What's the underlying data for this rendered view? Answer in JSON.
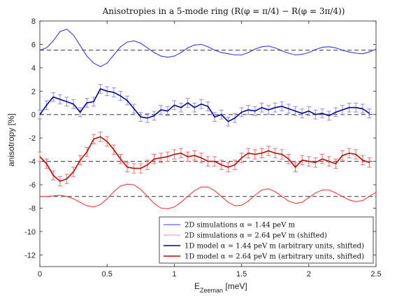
{
  "chart_data": {
    "type": "line",
    "title": "Anisotropies in a 5-mode ring (R(φ = π/4) − R(φ = 3π/4))",
    "xlabel": "E",
    "xlabel_sub": "Zeeman",
    "xlabel_unit": " [meV]",
    "ylabel": "anisotropy [%]",
    "xlim": [
      0,
      2.5
    ],
    "ylim": [
      -13,
      8
    ],
    "xticks": [
      0,
      0.5,
      1,
      1.5,
      2,
      2.5
    ],
    "xtick_labels": [
      "0",
      "0.5",
      "1",
      "1.5",
      "2",
      "2.5"
    ],
    "yticks": [
      8,
      6,
      4,
      2,
      0,
      -2,
      -4,
      -6,
      -8,
      -10,
      -12
    ],
    "ytick_labels": [
      "8",
      "6",
      "4",
      "2",
      "0",
      "-2",
      "-4",
      "-6",
      "-8",
      "-10",
      "-12"
    ],
    "grid": false,
    "legend_position": "bottom-right",
    "baselines": [
      5.5,
      0,
      -4,
      -7
    ],
    "series": [
      {
        "name": "2D simulations α = 1.44 peV m",
        "color": "#3a3aff",
        "x": [
          0,
          0.05,
          0.1,
          0.15,
          0.2,
          0.25,
          0.3,
          0.35,
          0.4,
          0.45,
          0.5,
          0.55,
          0.6,
          0.65,
          0.7,
          0.75,
          0.8,
          0.85,
          0.9,
          0.95,
          1.0,
          1.05,
          1.1,
          1.15,
          1.2,
          1.25,
          1.3,
          1.35,
          1.4,
          1.45,
          1.5,
          1.55,
          1.6,
          1.65,
          1.7,
          1.75,
          1.8,
          1.85,
          1.9,
          1.95,
          2.0,
          2.05,
          2.1,
          2.15,
          2.2,
          2.25,
          2.3,
          2.35,
          2.4,
          2.45,
          2.5
        ],
        "y": [
          5.5,
          5.7,
          6.3,
          7.1,
          7.3,
          6.8,
          5.9,
          5.0,
          4.4,
          4.1,
          4.4,
          5.1,
          5.8,
          6.2,
          6.3,
          6.1,
          5.7,
          5.3,
          5.0,
          4.9,
          5.0,
          5.3,
          5.7,
          5.95,
          6.0,
          5.8,
          5.5,
          5.3,
          5.2,
          5.1,
          5.1,
          5.3,
          5.6,
          5.8,
          5.85,
          5.7,
          5.45,
          5.25,
          5.1,
          5.15,
          5.3,
          5.55,
          5.75,
          5.8,
          5.7,
          5.5,
          5.35,
          5.25,
          5.2,
          5.35,
          5.6
        ]
      },
      {
        "name": "2D simulations α = 2.64 peV m (shifted)",
        "color": "#ff3a3a",
        "x": [
          0,
          0.05,
          0.1,
          0.15,
          0.2,
          0.25,
          0.3,
          0.35,
          0.4,
          0.45,
          0.5,
          0.55,
          0.6,
          0.65,
          0.7,
          0.75,
          0.8,
          0.85,
          0.9,
          0.95,
          1.0,
          1.05,
          1.1,
          1.15,
          1.2,
          1.25,
          1.3,
          1.35,
          1.4,
          1.45,
          1.5,
          1.55,
          1.6,
          1.65,
          1.7,
          1.75,
          1.8,
          1.85,
          1.9,
          1.95,
          2.0,
          2.05,
          2.1,
          2.15,
          2.2,
          2.25,
          2.3,
          2.35,
          2.4,
          2.45,
          2.5
        ],
        "y": [
          -7.0,
          -7.0,
          -6.95,
          -6.9,
          -7.0,
          -7.2,
          -7.5,
          -7.8,
          -7.9,
          -7.7,
          -7.2,
          -6.6,
          -6.1,
          -5.95,
          -6.0,
          -6.4,
          -7.0,
          -7.6,
          -8.0,
          -8.05,
          -7.9,
          -7.5,
          -7.0,
          -6.5,
          -6.2,
          -6.2,
          -6.5,
          -7.0,
          -7.5,
          -7.8,
          -7.75,
          -7.4,
          -6.9,
          -6.45,
          -6.35,
          -6.6,
          -7.0,
          -7.4,
          -7.6,
          -7.5,
          -7.1,
          -6.7,
          -6.45,
          -6.45,
          -6.7,
          -7.0,
          -7.3,
          -7.45,
          -7.35,
          -7.0,
          -6.65
        ]
      },
      {
        "name": "1D model α = 1.44 peV m (arbitrary units, shifted)",
        "color": "#0000aa",
        "error_color": "#8a8aff",
        "error": 0.38,
        "x": [
          0,
          0.05,
          0.1,
          0.15,
          0.2,
          0.25,
          0.3,
          0.35,
          0.4,
          0.45,
          0.5,
          0.55,
          0.6,
          0.65,
          0.7,
          0.75,
          0.8,
          0.85,
          0.9,
          0.95,
          1.0,
          1.05,
          1.1,
          1.15,
          1.2,
          1.25,
          1.3,
          1.35,
          1.4,
          1.45,
          1.5,
          1.55,
          1.6,
          1.65,
          1.7,
          1.75,
          1.8,
          1.85,
          1.9,
          1.95,
          2.0,
          2.05,
          2.1,
          2.15,
          2.2,
          2.25,
          2.3,
          2.35,
          2.4,
          2.45
        ],
        "y": [
          0.0,
          0.8,
          1.5,
          1.3,
          1.1,
          0.9,
          0.2,
          1.0,
          1.1,
          2.2,
          2.0,
          1.9,
          1.6,
          1.2,
          0.5,
          -0.2,
          -0.3,
          -0.1,
          0.4,
          0.3,
          0.8,
          0.6,
          1.0,
          0.6,
          0.9,
          0.7,
          -0.2,
          0.0,
          -0.6,
          -0.3,
          0.2,
          0.4,
          0.3,
          0.6,
          0.4,
          0.6,
          0.7,
          0.5,
          0.3,
          0.1,
          0.3,
          0.0,
          0.1,
          -0.1,
          0.2,
          0.4,
          0.6,
          0.6,
          0.5,
          0.1
        ]
      },
      {
        "name": "1D model α = 2.64 peV m (arbitrary units, shifted)",
        "color": "#cc0000",
        "error_color": "#ff6a6a",
        "error": 0.4,
        "x": [
          0,
          0.05,
          0.1,
          0.15,
          0.2,
          0.25,
          0.3,
          0.35,
          0.4,
          0.45,
          0.5,
          0.55,
          0.6,
          0.65,
          0.7,
          0.75,
          0.8,
          0.85,
          0.9,
          0.95,
          1.0,
          1.05,
          1.1,
          1.15,
          1.2,
          1.25,
          1.3,
          1.35,
          1.4,
          1.45,
          1.5,
          1.55,
          1.6,
          1.65,
          1.7,
          1.75,
          1.8,
          1.85,
          1.9,
          1.95,
          2.0,
          2.05,
          2.1,
          2.15,
          2.2,
          2.25,
          2.3,
          2.35,
          2.4,
          2.45
        ],
        "y": [
          -3.6,
          -4.2,
          -5.2,
          -5.7,
          -5.5,
          -4.9,
          -3.9,
          -3.2,
          -2.1,
          -1.9,
          -2.3,
          -3.0,
          -3.8,
          -4.5,
          -4.6,
          -4.6,
          -4.3,
          -3.8,
          -3.7,
          -3.6,
          -3.4,
          -3.3,
          -3.6,
          -3.5,
          -3.7,
          -4.0,
          -4.0,
          -4.3,
          -4.5,
          -4.3,
          -3.7,
          -3.3,
          -3.4,
          -3.3,
          -3.1,
          -3.3,
          -3.4,
          -3.8,
          -4.5,
          -3.9,
          -4.0,
          -4.1,
          -3.8,
          -4.0,
          -4.2,
          -3.5,
          -3.3,
          -3.4,
          -3.9,
          -4.1
        ]
      }
    ],
    "legend": [
      "2D simulations α = 1.44 peV m",
      "2D simulations α = 2.64 peV m (shifted)",
      "1D model α = 1.44 peV m (arbitrary units, shifted)",
      "1D model α = 2.64 peV m (arbitrary units, shifted)"
    ]
  }
}
